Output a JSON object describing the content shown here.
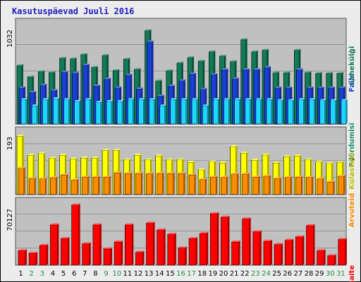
{
  "title": "Kasutuspäevad Juuli 2016",
  "colors": {
    "pages": "#117a56",
    "files": "#1a3fd8",
    "hits": "#1fd7ff",
    "visits": "#ff8c00",
    "sites": "#ffff00",
    "kbytes": "#ff0000",
    "weekend_label": "#1f8f3f",
    "weekday_label": "#000000",
    "panel_bg": "#c0c0c0"
  },
  "chart_data": [
    {
      "type": "bar",
      "panel": "top",
      "y_tick_label": "1032",
      "legend": [
        "Pöördumisi",
        "Faile",
        "Lehekülgi"
      ],
      "ylim": [
        0,
        1120
      ],
      "categories": [
        "1",
        "2",
        "3",
        "4",
        "5",
        "6",
        "7",
        "8",
        "9",
        "10",
        "11",
        "12",
        "13",
        "14",
        "15",
        "16",
        "17",
        "18",
        "19",
        "20",
        "21",
        "22",
        "23",
        "24",
        "25",
        "26",
        "27",
        "28",
        "29",
        "30",
        "31"
      ],
      "series": [
        {
          "name": "Pöördumisi",
          "values": [
            646,
            520,
            578,
            570,
            726,
            720,
            767,
            626,
            757,
            591,
            717,
            604,
            1032,
            476,
            588,
            673,
            734,
            694,
            798,
            750,
            689,
            932,
            797,
            816,
            566,
            566,
            816,
            569,
            560,
            560,
            560
          ]
        },
        {
          "name": "Faile",
          "values": [
            400,
            350,
            430,
            369,
            573,
            563,
            650,
            420,
            496,
            400,
            541,
            388,
            907,
            309,
            419,
            477,
            552,
            384,
            546,
            600,
            500,
            600,
            600,
            624,
            400,
            400,
            600,
            400,
            400,
            400,
            400
          ]
        },
        {
          "name": "Lehekülgi",
          "values": [
            270,
            200,
            270,
            280,
            270,
            250,
            270,
            240,
            250,
            250,
            270,
            270,
            270,
            200,
            270,
            270,
            270,
            200,
            270,
            270,
            270,
            270,
            270,
            270,
            260,
            260,
            270,
            270,
            260,
            260,
            260
          ]
        }
      ]
    },
    {
      "type": "bar",
      "panel": "middle",
      "y_tick_label": "193",
      "legend": [
        "Arvuteid",
        "Külastusi"
      ],
      "ylim": [
        0,
        210
      ],
      "categories": [
        "1",
        "2",
        "3",
        "4",
        "5",
        "6",
        "7",
        "8",
        "9",
        "10",
        "11",
        "12",
        "13",
        "14",
        "15",
        "16",
        "17",
        "18",
        "19",
        "20",
        "21",
        "22",
        "23",
        "24",
        "25",
        "26",
        "27",
        "28",
        "29",
        "30",
        "31"
      ],
      "series": [
        {
          "name": "Külastusi",
          "values": [
            193,
            130,
            136,
            120,
            130,
            118,
            121,
            121,
            146,
            146,
            115,
            130,
            115,
            128,
            115,
            115,
            107,
            82,
            108,
            105,
            159,
            137,
            114,
            131,
            105,
            125,
            128,
            115,
            108,
            103,
            106
          ]
        },
        {
          "name": "Arvuteid",
          "values": [
            87,
            53,
            52,
            56,
            65,
            48,
            58,
            58,
            58,
            72,
            70,
            70,
            69,
            70,
            70,
            70,
            65,
            50,
            58,
            57,
            68,
            68,
            58,
            61,
            53,
            57,
            58,
            57,
            52,
            42,
            61
          ]
        }
      ]
    },
    {
      "type": "bar",
      "panel": "bottom",
      "y_tick_label": "70127",
      "legend": [
        "KBaite"
      ],
      "ylim": [
        0,
        74000
      ],
      "categories": [
        "1",
        "2",
        "3",
        "4",
        "5",
        "6",
        "7",
        "8",
        "9",
        "10",
        "11",
        "12",
        "13",
        "14",
        "15",
        "16",
        "17",
        "18",
        "19",
        "20",
        "21",
        "22",
        "23",
        "24",
        "25",
        "26",
        "27",
        "28",
        "29",
        "30",
        "31"
      ],
      "series": [
        {
          "name": "KBaite",
          "values": [
            17000,
            14000,
            23000,
            47000,
            31000,
            70127,
            25000,
            47000,
            19000,
            27000,
            47000,
            15000,
            49000,
            41000,
            36000,
            20000,
            31000,
            37000,
            60000,
            56000,
            27000,
            54000,
            39000,
            28000,
            24000,
            29000,
            33000,
            46000,
            17000,
            11000,
            30000
          ]
        }
      ]
    }
  ],
  "x_labels": [
    "1",
    "2",
    "3",
    "4",
    "5",
    "6",
    "7",
    "8",
    "9",
    "10",
    "11",
    "12",
    "13",
    "14",
    "15",
    "16",
    "17",
    "18",
    "19",
    "20",
    "21",
    "22",
    "23",
    "24",
    "25",
    "26",
    "27",
    "28",
    "29",
    "30",
    "31"
  ],
  "weekend_days": [
    "2",
    "3",
    "9",
    "10",
    "16",
    "17",
    "23",
    "24",
    "30",
    "31"
  ]
}
